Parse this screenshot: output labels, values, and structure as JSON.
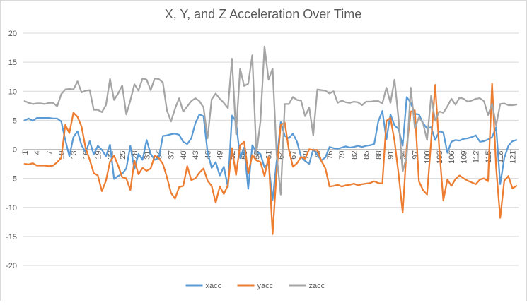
{
  "chart_data": {
    "type": "line",
    "title": "X, Y, and Z Acceleration Over Time",
    "xlabel": "",
    "ylabel": "",
    "ylim": [
      -20,
      20
    ],
    "yticks": [
      -20,
      -15,
      -10,
      -5,
      0,
      5,
      10,
      15,
      20
    ],
    "x_start": 1,
    "x_count": 122,
    "x_tick_labels": [
      "1",
      "4",
      "7",
      "10",
      "13",
      "16",
      "19",
      "22",
      "25",
      "28",
      "31",
      "34",
      "37",
      "40",
      "43",
      "46",
      "49",
      "52",
      "55",
      "58",
      "61",
      "64",
      "67",
      "70",
      "73",
      "76",
      "79",
      "82",
      "85",
      "88",
      "91",
      "94",
      "97",
      "100",
      "103",
      "106",
      "109",
      "112",
      "115",
      "118",
      "121"
    ],
    "grid": true,
    "legend_position": "bottom",
    "series": [
      {
        "name": "xacc",
        "color": "#5B9BD5",
        "values": [
          5.0,
          5.3,
          4.9,
          5.4,
          5.4,
          5.4,
          5.4,
          5.3,
          5.3,
          4.8,
          1.6,
          -1.2,
          2.1,
          3.1,
          0.7,
          -0.5,
          1.4,
          -0.9,
          0.6,
          -0.1,
          -1.2,
          0.8,
          -5.1,
          -4.6,
          -4.2,
          -3.3,
          0.6,
          -3.4,
          -0.8,
          -1.8,
          1.6,
          -0.8,
          -1.8,
          -1.5,
          2.3,
          2.4,
          2.6,
          2.7,
          2.5,
          1.3,
          0.9,
          1.9,
          4.5,
          6.0,
          5.7,
          -0.5,
          -3.2,
          -2.2,
          -4.5,
          -3.0,
          -6.5,
          5.8,
          4.8,
          -1.5,
          0.3,
          -6.8,
          0.7,
          -0.5,
          -0.8,
          -3.1,
          -2.5,
          -8.7,
          -2.0,
          4.7,
          2.3,
          1.9,
          2.7,
          1.3,
          -1.3,
          -2.0,
          -2.5,
          0.0,
          -1.0,
          -1.9,
          -1.4,
          0.4,
          0.2,
          0.1,
          0.3,
          0.5,
          0.3,
          0.4,
          0.6,
          0.4,
          0.6,
          0.7,
          0.9,
          4.8,
          6.6,
          1.7,
          6.0,
          4.1,
          3.5,
          0.6,
          9.0,
          8.0,
          6.1,
          6.0,
          4.5,
          3.6,
          3.8,
          1.6,
          3.1,
          2.9,
          -0.6,
          1.3,
          1.6,
          1.5,
          1.8,
          1.9,
          2.1,
          2.4,
          1.3,
          1.4,
          1.7,
          2.1,
          3.8,
          -6.0,
          -1.5,
          0.6,
          1.4,
          1.6
        ]
      },
      {
        "name": "yacc",
        "color": "#ED7D31",
        "values": [
          -2.5,
          -2.6,
          -2.4,
          -2.8,
          -2.8,
          -2.8,
          -2.9,
          -2.8,
          -2.2,
          -1.5,
          4.2,
          2.8,
          6.3,
          5.6,
          3.9,
          0.2,
          -1.8,
          -4.1,
          -4.5,
          -7.2,
          -5.4,
          -2.1,
          -1.1,
          -2.8,
          -4.8,
          -5.0,
          -7.0,
          -1.9,
          -4.3,
          -3.2,
          -3.7,
          -3.3,
          -1.1,
          -1.5,
          -2.5,
          -4.8,
          -7.5,
          -8.5,
          -6.5,
          -6.3,
          -2.9,
          -5.3,
          -5.0,
          -4.0,
          -3.3,
          -5.4,
          -6.3,
          -9.2,
          -6.4,
          -7.7,
          -6.2,
          0.2,
          -4.4,
          0.7,
          1.3,
          -4.1,
          -1.0,
          -1.9,
          -2.2,
          -4.6,
          -1.3,
          -14.6,
          -3.7,
          4.2,
          4.6,
          -0.1,
          -3.0,
          -2.4,
          -1.3,
          -1.6,
          0.0,
          -0.1,
          -0.1,
          -2.0,
          -3.3,
          -6.4,
          -6.3,
          -6.1,
          -6.4,
          -6.2,
          -6.1,
          -5.9,
          -6.2,
          -6.0,
          -5.9,
          -5.8,
          -5.5,
          -5.8,
          -5.9,
          4.9,
          5.4,
          1.4,
          -4.3,
          -10.9,
          0.4,
          6.5,
          6.7,
          -5.5,
          -7.0,
          -7.8,
          1.4,
          11.1,
          0.2,
          -8.8,
          -5.2,
          -6.3,
          -5.1,
          -4.5,
          -5.0,
          -5.4,
          -5.7,
          -6.0,
          -5.2,
          -5.0,
          -5.5,
          11.3,
          -3.2,
          -11.8,
          -5.4,
          -4.6,
          -6.7,
          -6.3
        ]
      },
      {
        "name": "zacc",
        "color": "#A5A5A5",
        "values": [
          8.3,
          8.0,
          7.8,
          7.9,
          7.9,
          7.8,
          8.0,
          8.0,
          7.4,
          9.5,
          10.3,
          10.4,
          10.3,
          11.7,
          9.8,
          10.1,
          10.2,
          6.8,
          6.8,
          6.4,
          7.6,
          12.1,
          8.5,
          9.6,
          11.0,
          6.0,
          8.4,
          11.2,
          10.1,
          12.2,
          12.0,
          10.2,
          12.2,
          12.1,
          11.5,
          6.7,
          4.8,
          7.0,
          8.8,
          6.5,
          7.4,
          8.3,
          8.8,
          8.3,
          7.2,
          1.9,
          8.6,
          9.6,
          8.7,
          8.0,
          7.1,
          15.6,
          2.6,
          13.9,
          10.9,
          11.3,
          16.2,
          -0.8,
          4.8,
          17.7,
          12.0,
          13.9,
          -1.0,
          -7.8,
          7.8,
          7.8,
          9.0,
          8.5,
          8.4,
          5.7,
          7.2,
          2.4,
          10.3,
          10.2,
          10.1,
          9.6,
          10.0,
          8.0,
          8.4,
          8.1,
          8.0,
          8.2,
          8.1,
          7.6,
          8.2,
          8.2,
          8.3,
          8.3,
          7.9,
          10.6,
          8.0,
          12.0,
          5.1,
          -3.8,
          -1.2,
          10.6,
          3.6,
          5.5,
          4.5,
          1.6,
          9.2,
          4.9,
          6.5,
          6.3,
          7.4,
          8.7,
          7.7,
          8.9,
          8.7,
          8.2,
          8.4,
          8.7,
          8.8,
          8.3,
          5.9,
          7.9,
          4.1,
          7.8,
          7.9,
          7.6,
          7.6,
          7.7
        ]
      }
    ]
  }
}
